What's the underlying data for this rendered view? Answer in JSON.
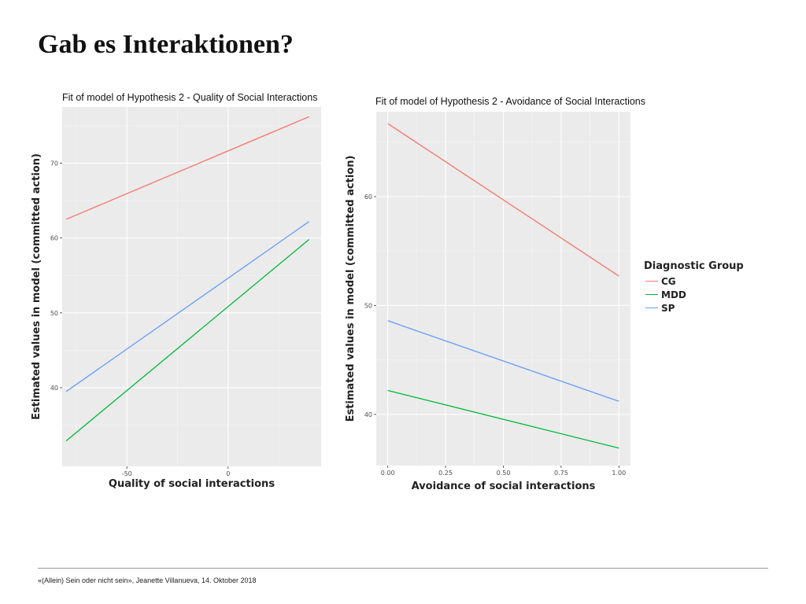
{
  "slide": {
    "title": "Gab es Interaktionen?",
    "footer": "«(Allein) Sein oder nicht sein», Jeanette Villanueva, 14. Oktober 2018"
  },
  "legend": {
    "title": "Diagnostic Group",
    "items": [
      {
        "label": "CG",
        "color": "#F8766D"
      },
      {
        "label": "MDD",
        "color": "#00BA38"
      },
      {
        "label": "SP",
        "color": "#619CFF"
      }
    ]
  },
  "chart_data": [
    {
      "type": "line",
      "title": "Fit of model of Hypothesis 2 - Quality of Social Interactions",
      "xlabel": "Quality of social interactions",
      "ylabel": "Estimated values in model (committed action)",
      "xlim": [
        -82,
        46
      ],
      "ylim": [
        29.5,
        77.5
      ],
      "xticks": [
        -50,
        0
      ],
      "xtick_labels": [
        "-50",
        "0"
      ],
      "yticks": [
        40,
        50,
        60,
        70
      ],
      "ytick_labels": [
        "40",
        "50",
        "60",
        "70"
      ],
      "grid": true,
      "series": [
        {
          "name": "CG",
          "color": "#F8766D",
          "x": [
            -80,
            40
          ],
          "y": [
            62.5,
            76.2
          ]
        },
        {
          "name": "MDD",
          "color": "#00BA38",
          "x": [
            -80,
            40
          ],
          "y": [
            32.9,
            59.8
          ]
        },
        {
          "name": "SP",
          "color": "#619CFF",
          "x": [
            -80,
            40
          ],
          "y": [
            39.5,
            62.2
          ]
        }
      ]
    },
    {
      "type": "line",
      "title": "Fit of model of Hypothesis 2 - Avoidance of Social Interactions",
      "xlabel": "Avoidance of social interactions",
      "ylabel": "Estimated values in model (committed action)",
      "xlim": [
        -0.05,
        1.05
      ],
      "ylim": [
        35.3,
        67.8
      ],
      "xticks": [
        0,
        0.25,
        0.5,
        0.75,
        1.0
      ],
      "xtick_labels": [
        "0.00",
        "0.25",
        "0.50",
        "0.75",
        "1.00"
      ],
      "yticks": [
        40,
        50,
        60
      ],
      "ytick_labels": [
        "40",
        "50",
        "60"
      ],
      "grid": true,
      "series": [
        {
          "name": "CG",
          "color": "#F8766D",
          "x": [
            0,
            1
          ],
          "y": [
            66.7,
            52.7
          ]
        },
        {
          "name": "MDD",
          "color": "#00BA38",
          "x": [
            0,
            1
          ],
          "y": [
            42.2,
            36.9
          ]
        },
        {
          "name": "SP",
          "color": "#619CFF",
          "x": [
            0,
            1
          ],
          "y": [
            48.6,
            41.2
          ]
        }
      ]
    }
  ]
}
